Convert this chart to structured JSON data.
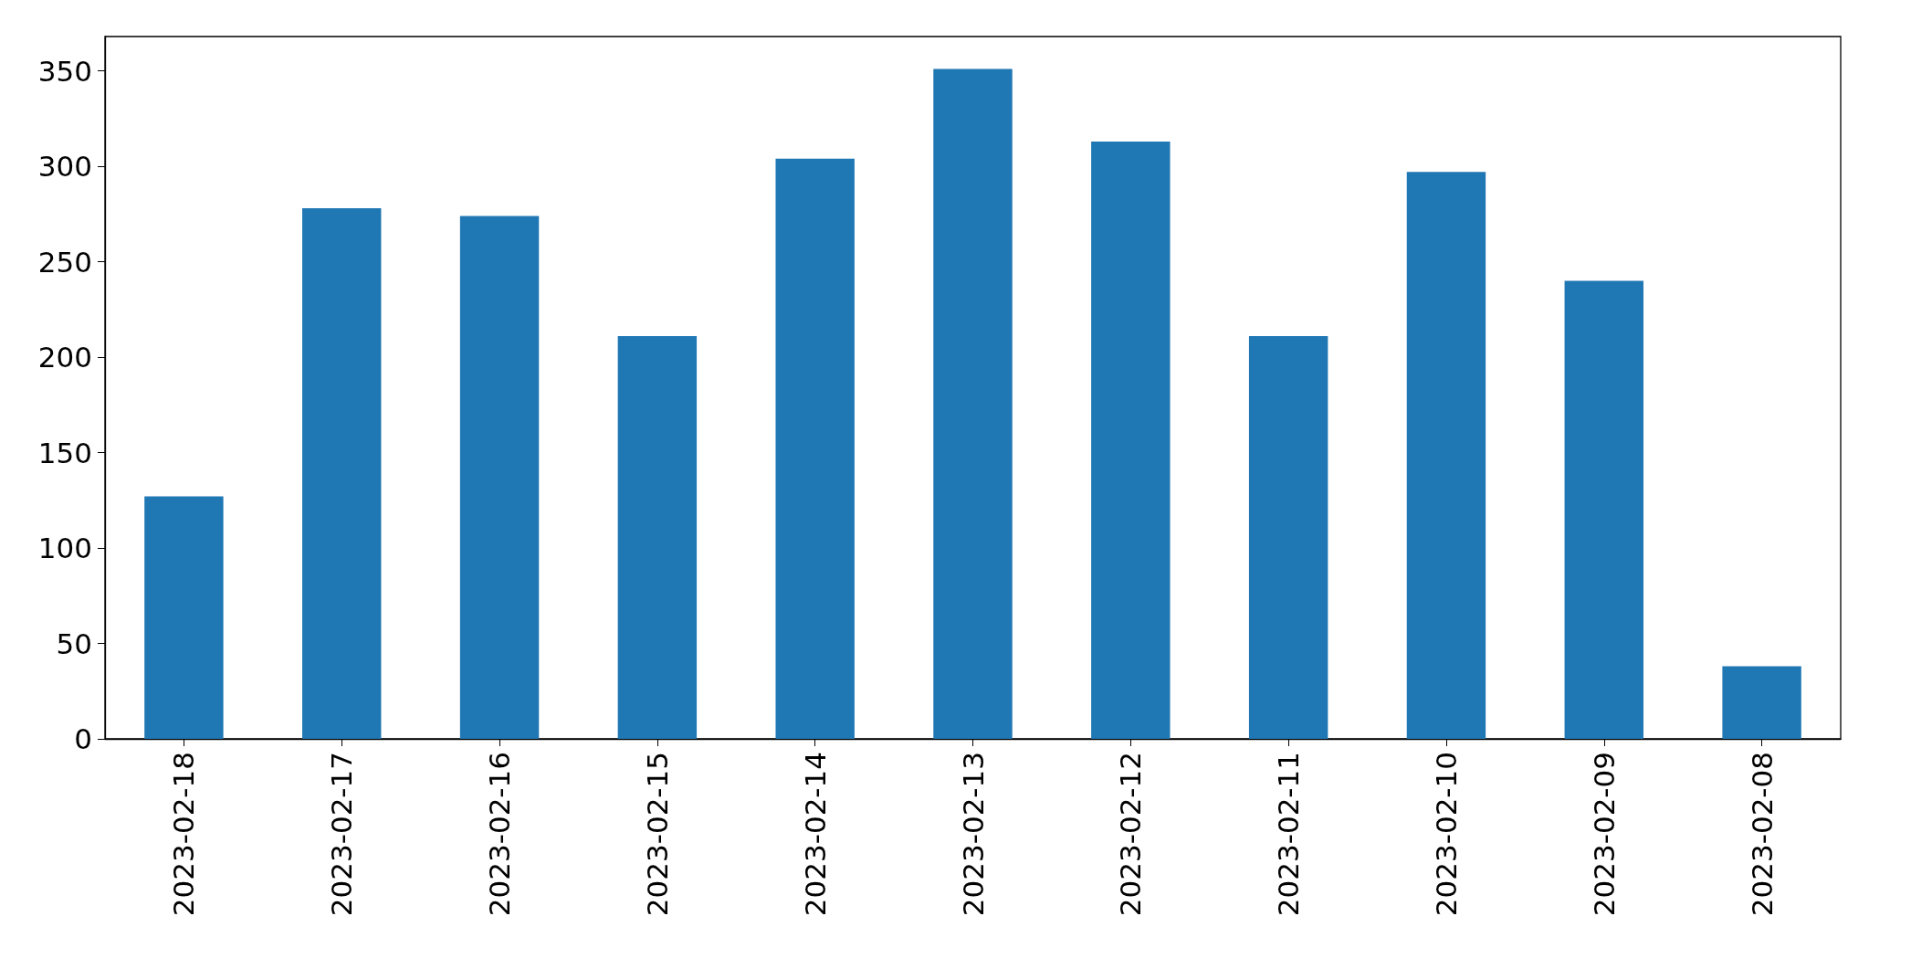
{
  "chart_data": {
    "type": "bar",
    "categories": [
      "2023-02-18",
      "2023-02-17",
      "2023-02-16",
      "2023-02-15",
      "2023-02-14",
      "2023-02-13",
      "2023-02-12",
      "2023-02-11",
      "2023-02-10",
      "2023-02-09",
      "2023-02-08"
    ],
    "values": [
      127,
      278,
      274,
      211,
      304,
      351,
      313,
      211,
      297,
      240,
      38
    ],
    "color": "#1f77b4",
    "ylim": [
      0,
      368
    ],
    "yticks": [
      0,
      50,
      100,
      150,
      200,
      250,
      300,
      350
    ],
    "grid": false
  }
}
